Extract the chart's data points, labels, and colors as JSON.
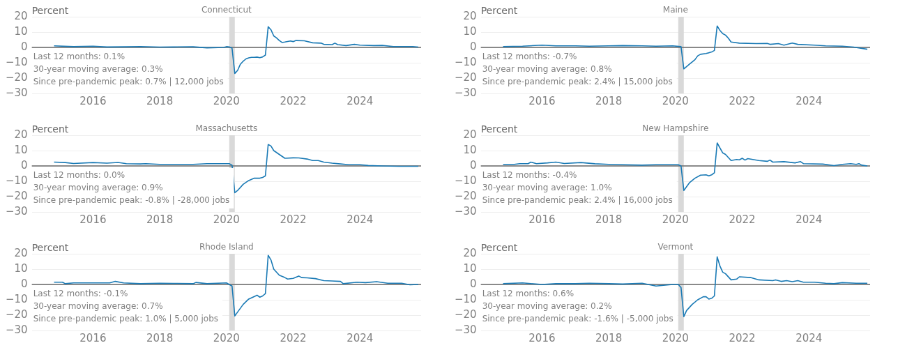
{
  "chart_data": [
    {
      "type": "line",
      "title": "Connecticut",
      "ylabel": "Percent",
      "annotations": [
        "Last 12 months: 0.1%",
        "30-year moving average: 0.3%",
        "Since pre-pandemic peak: 0.7% | 12,000 jobs"
      ],
      "marker": "none",
      "grid": "y",
      "xlim": [
        "2014-03",
        "2025-11"
      ],
      "xticks": [
        "2016",
        "2018",
        "2020",
        "2022",
        "2024"
      ],
      "ylim": [
        -30,
        20
      ],
      "yticks": [
        -30,
        -20,
        -10,
        0,
        10,
        20
      ],
      "bands": [
        {
          "axis": "x",
          "from": "2020-02",
          "to": "2020-04",
          "color": "#d9d9d9"
        }
      ],
      "ref_lines": [
        {
          "axis": "y",
          "value": 0,
          "color": "#666666"
        }
      ],
      "x": [
        "2014-11",
        "2015-06",
        "2016-01",
        "2016-06",
        "2017-01",
        "2017-06",
        "2018-01",
        "2018-06",
        "2019-01",
        "2019-06",
        "2019-12",
        "2020-01",
        "2020-02",
        "2020-03",
        "2020-04",
        "2020-05",
        "2020-06",
        "2020-07",
        "2020-08",
        "2020-09",
        "2020-10",
        "2020-11",
        "2020-12",
        "2021-01",
        "2021-02",
        "2021-03",
        "2021-04",
        "2021-05",
        "2021-06",
        "2021-07",
        "2021-08",
        "2021-09",
        "2021-10",
        "2021-12",
        "2022-01",
        "2022-02",
        "2022-05",
        "2022-08",
        "2022-11",
        "2022-12",
        "2023-03",
        "2023-04",
        "2023-05",
        "2023-08",
        "2023-11",
        "2024-01",
        "2024-06",
        "2024-09",
        "2025-01",
        "2025-06",
        "2025-08",
        "2025-10"
      ],
      "series": [
        {
          "color": "#1a7ab5",
          "values": [
            1.0,
            0.5,
            0.8,
            0.3,
            0.4,
            0.6,
            0.2,
            0.3,
            0.4,
            -0.3,
            0.0,
            0.5,
            0.3,
            -0.5,
            -17,
            -15,
            -11,
            -9,
            -7.5,
            -6.8,
            -6.5,
            -6.5,
            -6.3,
            -6.7,
            -6.2,
            -5,
            13.5,
            11.5,
            7.5,
            6.2,
            4.5,
            3.2,
            3.5,
            4.2,
            3.8,
            4.5,
            4.3,
            3,
            2.8,
            2,
            1.8,
            2.8,
            1.8,
            1.2,
            2.0,
            1.5,
            1.2,
            1.3,
            0.6,
            0.6,
            0.6,
            0.2
          ]
        }
      ]
    },
    {
      "type": "line",
      "title": "Maine",
      "ylabel": "Percent",
      "annotations": [
        "Last 12 months: -0.7%",
        "30-year moving average: 0.8%",
        "Since pre-pandemic peak: 2.4% | 15,000 jobs"
      ],
      "marker": "none",
      "grid": "y",
      "xlim": [
        "2014-03",
        "2025-11"
      ],
      "xticks": [
        "2016",
        "2018",
        "2020",
        "2022",
        "2024"
      ],
      "ylim": [
        -30,
        20
      ],
      "yticks": [
        -30,
        -20,
        -10,
        0,
        10,
        20
      ],
      "bands": [
        {
          "axis": "x",
          "from": "2020-02",
          "to": "2020-04",
          "color": "#d9d9d9"
        }
      ],
      "ref_lines": [
        {
          "axis": "y",
          "value": 0,
          "color": "#666666"
        }
      ],
      "x": [
        "2014-11",
        "2015-06",
        "2016-01",
        "2016-06",
        "2017-01",
        "2017-06",
        "2018-01",
        "2018-06",
        "2019-01",
        "2019-06",
        "2019-12",
        "2020-03",
        "2020-04",
        "2020-06",
        "2020-08",
        "2020-09",
        "2020-10",
        "2020-12",
        "2021-02",
        "2021-03",
        "2021-04",
        "2021-05",
        "2021-06",
        "2021-07",
        "2021-08",
        "2021-09",
        "2021-12",
        "2022-06",
        "2022-10",
        "2022-11",
        "2023-02",
        "2023-04",
        "2023-07",
        "2023-09",
        "2024-03",
        "2024-07",
        "2025-01",
        "2025-05",
        "2025-10"
      ],
      "series": [
        {
          "color": "#1a7ab5",
          "values": [
            0.5,
            0.8,
            1.5,
            1.0,
            1.0,
            0.8,
            1.0,
            1.2,
            1.0,
            0.8,
            1.0,
            0.5,
            -14,
            -11,
            -8,
            -5.5,
            -4.5,
            -4,
            -3,
            -2,
            14,
            11,
            9,
            8,
            6,
            3.5,
            2.8,
            2.5,
            2.6,
            2.0,
            2.5,
            1.5,
            2.8,
            2,
            1.5,
            1.0,
            0.8,
            0.2,
            -1.2
          ]
        }
      ]
    },
    {
      "type": "line",
      "title": "Massachusetts",
      "ylabel": "Percent",
      "annotations": [
        "Last 12 months: 0.0%",
        "30-year moving average: 0.9%",
        "Since pre-pandemic peak: -0.8% | -28,000 jobs"
      ],
      "marker": "none",
      "grid": "y",
      "xlim": [
        "2014-03",
        "2025-11"
      ],
      "xticks": [
        "2016",
        "2018",
        "2020",
        "2022",
        "2024"
      ],
      "ylim": [
        -30,
        20
      ],
      "yticks": [
        -30,
        -20,
        -10,
        0,
        10,
        20
      ],
      "bands": [
        {
          "axis": "x",
          "from": "2020-02",
          "to": "2020-04",
          "color": "#d9d9d9"
        }
      ],
      "ref_lines": [
        {
          "axis": "y",
          "value": 0,
          "color": "#666666"
        }
      ],
      "x": [
        "2014-11",
        "2015-03",
        "2015-06",
        "2016-01",
        "2016-06",
        "2016-10",
        "2017-01",
        "2017-06",
        "2017-08",
        "2018-01",
        "2018-06",
        "2019-01",
        "2019-06",
        "2020-02",
        "2020-03",
        "2020-04",
        "2020-05",
        "2020-07",
        "2020-09",
        "2020-11",
        "2021-01",
        "2021-02",
        "2021-03",
        "2021-04",
        "2021-05",
        "2021-06",
        "2021-08",
        "2021-10",
        "2022-01",
        "2022-03",
        "2022-06",
        "2022-08",
        "2022-10",
        "2022-12",
        "2023-03",
        "2023-06",
        "2023-09",
        "2024-01",
        "2024-04",
        "2024-09",
        "2025-03",
        "2025-10"
      ],
      "series": [
        {
          "color": "#1a7ab5",
          "values": [
            2.5,
            2.2,
            1.6,
            2.2,
            1.8,
            2.3,
            1.5,
            1.3,
            1.5,
            1.0,
            1.0,
            1.0,
            1.5,
            1.5,
            0.5,
            -17.5,
            -16,
            -12,
            -9.5,
            -8,
            -8,
            -7.5,
            -6.5,
            14,
            13,
            10,
            7.5,
            5,
            5.3,
            5.2,
            4.5,
            3.5,
            3.5,
            2.5,
            1.8,
            1.3,
            0.8,
            0.8,
            0.3,
            0,
            -0.2,
            -0.2
          ]
        }
      ]
    },
    {
      "type": "line",
      "title": "New Hampshire",
      "ylabel": "Percent",
      "annotations": [
        "Last 12 months: -0.4%",
        "30-year moving average: 1.0%",
        "Since pre-pandemic peak: 2.4% | 16,000 jobs"
      ],
      "marker": "none",
      "grid": "y",
      "xlim": [
        "2014-03",
        "2025-11"
      ],
      "xticks": [
        "2016",
        "2018",
        "2020",
        "2022",
        "2024"
      ],
      "ylim": [
        -30,
        20
      ],
      "yticks": [
        -30,
        -20,
        -10,
        0,
        10,
        20
      ],
      "bands": [
        {
          "axis": "x",
          "from": "2020-02",
          "to": "2020-04",
          "color": "#d9d9d9"
        }
      ],
      "ref_lines": [
        {
          "axis": "y",
          "value": 0,
          "color": "#666666"
        }
      ],
      "x": [
        "2014-11",
        "2015-03",
        "2015-05",
        "2015-08",
        "2015-09",
        "2015-11",
        "2016-03",
        "2016-06",
        "2016-09",
        "2017-03",
        "2017-08",
        "2018-01",
        "2018-06",
        "2019-01",
        "2019-06",
        "2020-02",
        "2020-03",
        "2020-04",
        "2020-06",
        "2020-08",
        "2020-10",
        "2020-12",
        "2021-01",
        "2021-02",
        "2021-03",
        "2021-04",
        "2021-06",
        "2021-07",
        "2021-09",
        "2021-11",
        "2021-12",
        "2022-01",
        "2022-02",
        "2022-03",
        "2022-07",
        "2022-10",
        "2022-11",
        "2022-12",
        "2023-04",
        "2023-08",
        "2023-10",
        "2023-11",
        "2024-06",
        "2024-10",
        "2025-01",
        "2025-04",
        "2025-06",
        "2025-07",
        "2025-08",
        "2025-10"
      ],
      "series": [
        {
          "color": "#1a7ab5",
          "values": [
            1.0,
            1.0,
            1.5,
            1.5,
            2.5,
            1.5,
            2.0,
            2.5,
            1.6,
            2.2,
            1.4,
            1.0,
            0.8,
            0.5,
            0.8,
            0.8,
            0,
            -16,
            -11,
            -8,
            -6,
            -5.8,
            -6.5,
            -5.8,
            -4.5,
            15,
            8.5,
            7.5,
            3.5,
            4.2,
            4.0,
            5.0,
            3.8,
            4.8,
            3.5,
            3.0,
            3.8,
            2.5,
            2.8,
            2.0,
            2.8,
            1.5,
            1.2,
            0.2,
            1.0,
            1.5,
            1.0,
            1.5,
            0.5,
            0
          ]
        }
      ]
    },
    {
      "type": "line",
      "title": "Rhode Island",
      "ylabel": "Percent",
      "annotations": [
        "Last 12 months: -0.1%",
        "30-year moving average: 0.7%",
        "Since pre-pandemic peak: 1.0% | 5,000 jobs"
      ],
      "marker": "none",
      "grid": "y",
      "xlim": [
        "2014-03",
        "2025-11"
      ],
      "xticks": [
        "2016",
        "2018",
        "2020",
        "2022",
        "2024"
      ],
      "ylim": [
        -30,
        20
      ],
      "yticks": [
        -30,
        -20,
        -10,
        0,
        10,
        20
      ],
      "bands": [
        {
          "axis": "x",
          "from": "2020-02",
          "to": "2020-04",
          "color": "#d9d9d9"
        }
      ],
      "ref_lines": [
        {
          "axis": "y",
          "value": 0,
          "color": "#666666"
        }
      ],
      "x": [
        "2014-11",
        "2015-02",
        "2015-03",
        "2015-06",
        "2016-01",
        "2016-07",
        "2016-09",
        "2016-12",
        "2017-06",
        "2018-01",
        "2018-06",
        "2019-01",
        "2019-02",
        "2019-06",
        "2020-01",
        "2020-03",
        "2020-04",
        "2020-05",
        "2020-07",
        "2020-09",
        "2020-12",
        "2021-01",
        "2021-02",
        "2021-03",
        "2021-04",
        "2021-05",
        "2021-06",
        "2021-08",
        "2021-10",
        "2021-11",
        "2022-01",
        "2022-03",
        "2022-04",
        "2022-06",
        "2022-09",
        "2022-12",
        "2023-03",
        "2023-06",
        "2023-07",
        "2023-12",
        "2024-03",
        "2024-07",
        "2024-11",
        "2025-04",
        "2025-07",
        "2025-10"
      ],
      "series": [
        {
          "color": "#1a7ab5",
          "values": [
            1.5,
            1.5,
            0.5,
            1.0,
            1.0,
            1.0,
            2.0,
            1.0,
            0.5,
            0.8,
            0.7,
            0.5,
            1.3,
            0.5,
            1.0,
            -1,
            -20.5,
            -18,
            -13,
            -9.5,
            -7,
            -8.3,
            -7.5,
            -6,
            19,
            16,
            10,
            6,
            4.5,
            3.5,
            4,
            5.5,
            4.5,
            4.3,
            3.8,
            2.5,
            2.3,
            2.0,
            0.5,
            1.5,
            1.2,
            1.8,
            0.8,
            0.8,
            -0.2,
            0
          ]
        }
      ]
    },
    {
      "type": "line",
      "title": "Vermont",
      "ylabel": "Percent",
      "annotations": [
        "Last 12 months: 0.6%",
        "30-year moving average: 0.2%",
        "Since pre-pandemic peak: -1.6% | -5,000 jobs"
      ],
      "marker": "none",
      "grid": "y",
      "xlim": [
        "2014-03",
        "2025-11"
      ],
      "xticks": [
        "2016",
        "2018",
        "2020",
        "2022",
        "2024"
      ],
      "ylim": [
        -30,
        20
      ],
      "yticks": [
        -30,
        -20,
        -10,
        0,
        10,
        20
      ],
      "bands": [
        {
          "axis": "x",
          "from": "2020-02",
          "to": "2020-04",
          "color": "#d9d9d9"
        }
      ],
      "ref_lines": [
        {
          "axis": "y",
          "value": 0,
          "color": "#666666"
        }
      ],
      "x": [
        "2014-11",
        "2015-06",
        "2016-01",
        "2016-06",
        "2017-01",
        "2017-06",
        "2018-01",
        "2018-06",
        "2019-01",
        "2019-06",
        "2019-12",
        "2020-02",
        "2020-03",
        "2020-04",
        "2020-05",
        "2020-07",
        "2020-09",
        "2020-11",
        "2020-12",
        "2021-01",
        "2021-02",
        "2021-03",
        "2021-04",
        "2021-05",
        "2021-06",
        "2021-07",
        "2021-09",
        "2021-11",
        "2021-12",
        "2022-04",
        "2022-07",
        "2022-12",
        "2023-01",
        "2023-03",
        "2023-05",
        "2023-07",
        "2023-09",
        "2023-11",
        "2024-03",
        "2024-07",
        "2024-10",
        "2025-01",
        "2025-06",
        "2025-10"
      ],
      "series": [
        {
          "color": "#1a7ab5",
          "values": [
            0.5,
            1.0,
            0,
            0.5,
            0.5,
            0.8,
            0.5,
            0.3,
            0.8,
            -1,
            0,
            0,
            -2,
            -21,
            -17,
            -13,
            -10,
            -8,
            -8,
            -9.5,
            -9,
            -7.5,
            18,
            12,
            8,
            7,
            3,
            3.5,
            5,
            4.5,
            3,
            2.5,
            3,
            2,
            2.5,
            1.8,
            2.5,
            1.5,
            1.5,
            0.8,
            0.5,
            1.2,
            0.8,
            0.8
          ]
        }
      ]
    }
  ]
}
